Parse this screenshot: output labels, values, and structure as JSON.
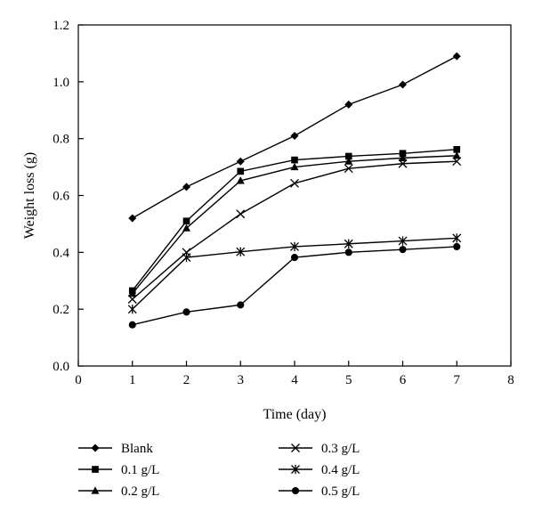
{
  "chart_data": {
    "type": "line",
    "xlabel": "Time (day)",
    "ylabel": "Weight loss (g)",
    "xlim": [
      0,
      8
    ],
    "ylim": [
      0.0,
      1.2
    ],
    "xticks": [
      "0",
      "1",
      "2",
      "3",
      "4",
      "5",
      "6",
      "7",
      "8"
    ],
    "yticks": [
      "0.0",
      "0.2",
      "0.4",
      "0.6",
      "0.8",
      "1.0",
      "1.2"
    ],
    "grid": false,
    "legend_position": "bottom",
    "x": [
      1,
      2,
      3,
      4,
      5,
      6,
      7
    ],
    "series": [
      {
        "name": "Blank",
        "marker": "diamond",
        "values": [
          0.52,
          0.63,
          0.72,
          0.81,
          0.92,
          0.99,
          1.09
        ]
      },
      {
        "name": "0.1 g/L",
        "marker": "square",
        "values": [
          0.265,
          0.51,
          0.685,
          0.725,
          0.738,
          0.748,
          0.762
        ]
      },
      {
        "name": "0.2 g/L",
        "marker": "triangle",
        "values": [
          0.255,
          0.485,
          0.652,
          0.7,
          0.72,
          0.732,
          0.74
        ]
      },
      {
        "name": "0.3 g/L",
        "marker": "x",
        "values": [
          0.235,
          0.4,
          0.535,
          0.643,
          0.695,
          0.712,
          0.72
        ]
      },
      {
        "name": "0.4 g/L",
        "marker": "star",
        "values": [
          0.2,
          0.382,
          0.402,
          0.42,
          0.43,
          0.44,
          0.45
        ]
      },
      {
        "name": "0.5 g/L",
        "marker": "circle",
        "values": [
          0.145,
          0.19,
          0.215,
          0.382,
          0.4,
          0.41,
          0.42
        ]
      }
    ]
  }
}
